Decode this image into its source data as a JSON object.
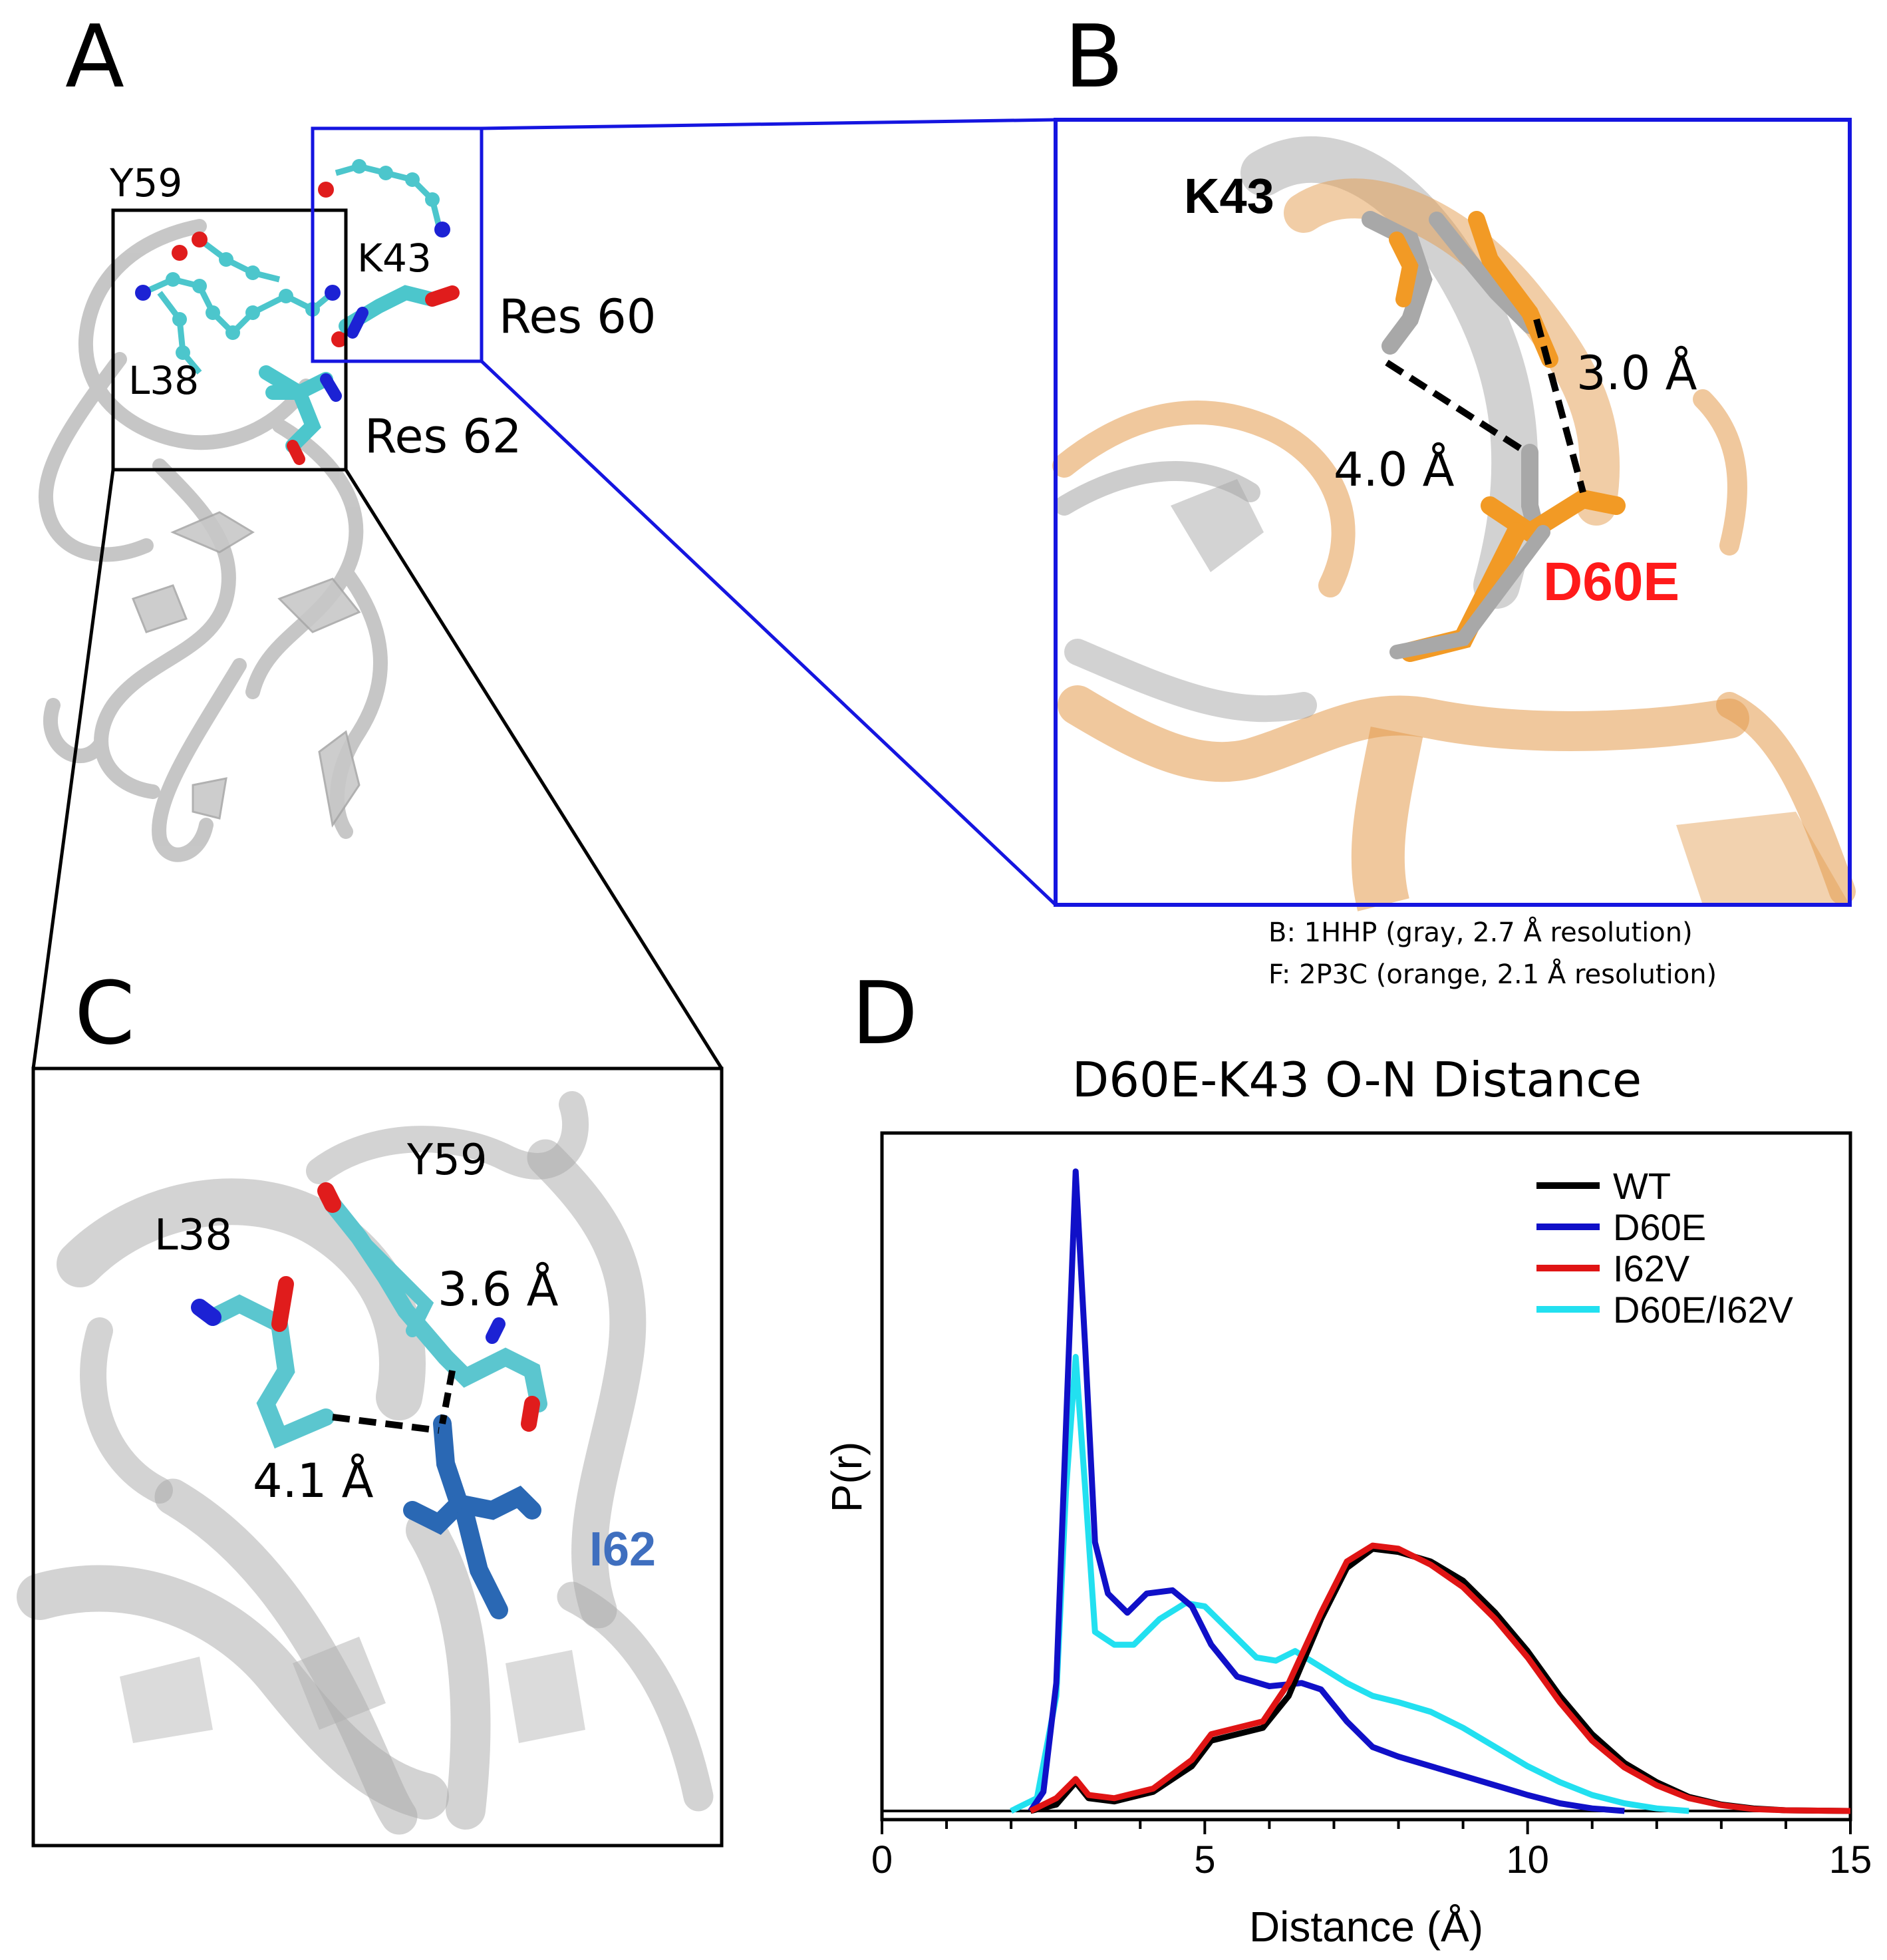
{
  "panels": {
    "A": {
      "letter": "A",
      "labels": [
        "Y59",
        "K43",
        "Res 60",
        "L38",
        "Res 62"
      ]
    },
    "B": {
      "letter": "B",
      "labels": {
        "residue_top": "K43",
        "residue_mut": "D60E",
        "dist_1": "3.0 Å",
        "dist_2": "4.0 Å"
      },
      "colors": {
        "gray_structure": "#b4b4b4",
        "orange_structure": "#e8922a",
        "mut_label": "#ff1a1a"
      },
      "caption": [
        "B: 1HHP (gray, 2.7 Å resolution)",
        "F: 2P3C (orange, 2.1 Å resolution)"
      ]
    },
    "C": {
      "letter": "C",
      "labels": {
        "y59": "Y59",
        "l38": "L38",
        "dist_1": "3.6 Å",
        "dist_2": "4.1 Å",
        "i62": "I62"
      },
      "colors": {
        "i62_label": "#3f6fbf",
        "cyan_sticks": "#5bc6cf"
      }
    },
    "D": {
      "letter": "D"
    }
  },
  "chart_data": {
    "type": "line",
    "title": "D60E-K43 O-N Distance",
    "xlabel": "Distance (Å)",
    "ylabel": "P(r)",
    "xlim": [
      0,
      15
    ],
    "xticks": [
      0,
      5,
      10,
      15
    ],
    "grid": false,
    "legend_position": "top-right",
    "series": [
      {
        "name": "WT",
        "color": "#000000",
        "points": [
          [
            2.3,
            0
          ],
          [
            2.7,
            0.01
          ],
          [
            3.0,
            0.045
          ],
          [
            3.2,
            0.02
          ],
          [
            3.6,
            0.015
          ],
          [
            4.2,
            0.03
          ],
          [
            4.8,
            0.07
          ],
          [
            5.1,
            0.11
          ],
          [
            5.5,
            0.12
          ],
          [
            5.9,
            0.13
          ],
          [
            6.3,
            0.18
          ],
          [
            6.8,
            0.3
          ],
          [
            7.2,
            0.38
          ],
          [
            7.6,
            0.41
          ],
          [
            8.0,
            0.405
          ],
          [
            8.5,
            0.39
          ],
          [
            9.0,
            0.36
          ],
          [
            9.5,
            0.31
          ],
          [
            10.0,
            0.25
          ],
          [
            10.5,
            0.18
          ],
          [
            11.0,
            0.12
          ],
          [
            11.5,
            0.075
          ],
          [
            12.0,
            0.045
          ],
          [
            12.5,
            0.022
          ],
          [
            13.0,
            0.01
          ],
          [
            13.5,
            0.004
          ],
          [
            14.0,
            0.001
          ],
          [
            15.0,
            0
          ]
        ]
      },
      {
        "name": "D60E",
        "color": "#1010c8",
        "points": [
          [
            2.3,
            0
          ],
          [
            2.5,
            0.03
          ],
          [
            2.7,
            0.2
          ],
          [
            2.85,
            0.6
          ],
          [
            3.0,
            1.0
          ],
          [
            3.15,
            0.72
          ],
          [
            3.3,
            0.42
          ],
          [
            3.5,
            0.34
          ],
          [
            3.8,
            0.31
          ],
          [
            4.1,
            0.34
          ],
          [
            4.5,
            0.345
          ],
          [
            4.8,
            0.32
          ],
          [
            5.1,
            0.26
          ],
          [
            5.5,
            0.21
          ],
          [
            6.0,
            0.195
          ],
          [
            6.5,
            0.2
          ],
          [
            6.8,
            0.19
          ],
          [
            7.2,
            0.14
          ],
          [
            7.6,
            0.1
          ],
          [
            8.0,
            0.085
          ],
          [
            8.5,
            0.07
          ],
          [
            9.0,
            0.055
          ],
          [
            9.5,
            0.04
          ],
          [
            10.0,
            0.025
          ],
          [
            10.5,
            0.012
          ],
          [
            11.0,
            0.004
          ],
          [
            11.5,
            0
          ]
        ]
      },
      {
        "name": "I62V",
        "color": "#e01414",
        "points": [
          [
            2.3,
            0
          ],
          [
            2.7,
            0.02
          ],
          [
            3.0,
            0.05
          ],
          [
            3.2,
            0.025
          ],
          [
            3.6,
            0.02
          ],
          [
            4.2,
            0.035
          ],
          [
            4.8,
            0.08
          ],
          [
            5.1,
            0.12
          ],
          [
            5.5,
            0.13
          ],
          [
            5.9,
            0.14
          ],
          [
            6.3,
            0.2
          ],
          [
            6.8,
            0.31
          ],
          [
            7.2,
            0.39
          ],
          [
            7.6,
            0.415
          ],
          [
            8.0,
            0.41
          ],
          [
            8.5,
            0.385
          ],
          [
            9.0,
            0.35
          ],
          [
            9.5,
            0.3
          ],
          [
            10.0,
            0.24
          ],
          [
            10.5,
            0.17
          ],
          [
            11.0,
            0.11
          ],
          [
            11.5,
            0.068
          ],
          [
            12.0,
            0.04
          ],
          [
            12.5,
            0.02
          ],
          [
            13.0,
            0.009
          ],
          [
            13.5,
            0.003
          ],
          [
            14.0,
            0.001
          ],
          [
            15.0,
            0
          ]
        ]
      },
      {
        "name": "D60E/I62V",
        "color": "#22e0f0",
        "points": [
          [
            2.0,
            0
          ],
          [
            2.4,
            0.02
          ],
          [
            2.7,
            0.18
          ],
          [
            2.85,
            0.5
          ],
          [
            3.0,
            0.71
          ],
          [
            3.15,
            0.5
          ],
          [
            3.3,
            0.28
          ],
          [
            3.6,
            0.26
          ],
          [
            3.9,
            0.26
          ],
          [
            4.3,
            0.3
          ],
          [
            4.7,
            0.325
          ],
          [
            5.0,
            0.32
          ],
          [
            5.4,
            0.28
          ],
          [
            5.8,
            0.24
          ],
          [
            6.1,
            0.235
          ],
          [
            6.4,
            0.25
          ],
          [
            6.8,
            0.225
          ],
          [
            7.2,
            0.2
          ],
          [
            7.6,
            0.18
          ],
          [
            8.0,
            0.17
          ],
          [
            8.5,
            0.155
          ],
          [
            9.0,
            0.13
          ],
          [
            9.5,
            0.1
          ],
          [
            10.0,
            0.07
          ],
          [
            10.5,
            0.045
          ],
          [
            11.0,
            0.025
          ],
          [
            11.5,
            0.012
          ],
          [
            12.0,
            0.004
          ],
          [
            12.5,
            0
          ]
        ]
      }
    ]
  }
}
